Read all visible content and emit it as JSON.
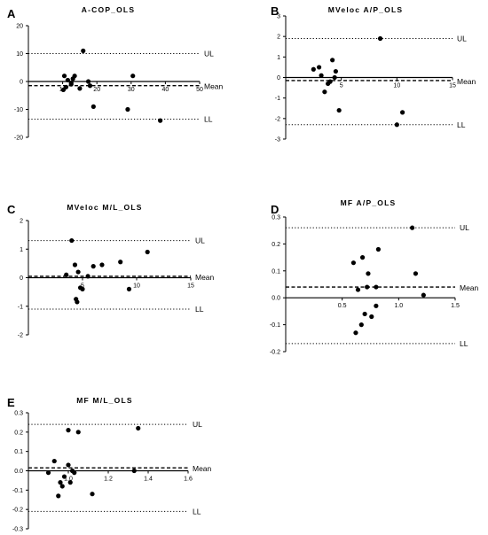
{
  "chart_data": [
    {
      "type": "scatter",
      "panel": "A",
      "title": "A-COP_OLS",
      "xlim": [
        0,
        50
      ],
      "ylim": [
        -20,
        20
      ],
      "x_ticks": [
        "10",
        "20",
        "30",
        "40",
        "50"
      ],
      "y_ticks": [
        "20",
        "10",
        "0",
        "-10",
        "-20"
      ],
      "ul": 10,
      "mean": -1.5,
      "ll": -13.5,
      "labels": {
        "ul": "UL",
        "mean": "Mean",
        "ll": "LL"
      },
      "points": [
        {
          "x": 10.5,
          "y": 2
        },
        {
          "x": 11.5,
          "y": 0.5
        },
        {
          "x": 11,
          "y": -2
        },
        {
          "x": 10.2,
          "y": -3
        },
        {
          "x": 12.5,
          "y": -1
        },
        {
          "x": 13,
          "y": 1
        },
        {
          "x": 13.5,
          "y": 2
        },
        {
          "x": 12.5,
          "y": -0.5
        },
        {
          "x": 15,
          "y": -2.5
        },
        {
          "x": 16,
          "y": 11
        },
        {
          "x": 17.5,
          "y": 0
        },
        {
          "x": 18,
          "y": -1.5
        },
        {
          "x": 19,
          "y": -9
        },
        {
          "x": 29,
          "y": -10
        },
        {
          "x": 30.5,
          "y": 2
        },
        {
          "x": 38.5,
          "y": -14
        }
      ]
    },
    {
      "type": "scatter",
      "panel": "B",
      "title": "MVeloc A/P_OLS",
      "xlim": [
        0,
        15
      ],
      "ylim": [
        -3,
        3
      ],
      "x_ticks": [
        "5",
        "10",
        "15"
      ],
      "y_ticks": [
        "3",
        "2",
        "1",
        "0",
        "-1",
        "-2",
        "-3"
      ],
      "ul": 1.9,
      "mean": -0.15,
      "ll": -2.3,
      "labels": {
        "ul": "UL",
        "mean": "Mean",
        "ll": "LL"
      },
      "points": [
        {
          "x": 2.5,
          "y": 0.4
        },
        {
          "x": 3,
          "y": 0.5
        },
        {
          "x": 3.2,
          "y": 0.1
        },
        {
          "x": 3.5,
          "y": -0.7
        },
        {
          "x": 3.8,
          "y": -0.3
        },
        {
          "x": 4,
          "y": -0.2
        },
        {
          "x": 4.2,
          "y": 0.85
        },
        {
          "x": 4.4,
          "y": 0
        },
        {
          "x": 4.5,
          "y": 0.3
        },
        {
          "x": 4.8,
          "y": -1.6
        },
        {
          "x": 8.5,
          "y": 1.9
        },
        {
          "x": 10,
          "y": -2.3
        },
        {
          "x": 10.5,
          "y": -1.7
        }
      ]
    },
    {
      "type": "scatter",
      "panel": "C",
      "title": "MVeloc M/L_OLS",
      "xlim": [
        0,
        15
      ],
      "ylim": [
        -2,
        2
      ],
      "x_ticks": [
        "5",
        "10",
        "15"
      ],
      "y_ticks": [
        "2",
        "1",
        "0",
        "-1",
        "-2"
      ],
      "ul": 1.3,
      "mean": 0.05,
      "ll": -1.1,
      "labels": {
        "ul": "UL",
        "mean": "Mean",
        "ll": "LL"
      },
      "points": [
        {
          "x": 3.5,
          "y": 0.1
        },
        {
          "x": 4,
          "y": 1.3
        },
        {
          "x": 4.3,
          "y": 0.45
        },
        {
          "x": 4.4,
          "y": -0.75
        },
        {
          "x": 4.5,
          "y": -0.85
        },
        {
          "x": 4.6,
          "y": 0.2
        },
        {
          "x": 4.8,
          "y": -0.35
        },
        {
          "x": 5,
          "y": -0.4
        },
        {
          "x": 5.5,
          "y": 0.05
        },
        {
          "x": 6,
          "y": 0.4
        },
        {
          "x": 6.8,
          "y": 0.45
        },
        {
          "x": 8.5,
          "y": 0.55
        },
        {
          "x": 9.3,
          "y": -0.4
        },
        {
          "x": 11,
          "y": 0.9
        }
      ]
    },
    {
      "type": "scatter",
      "panel": "D",
      "title": "MF A/P_OLS",
      "xlim": [
        0,
        1.5
      ],
      "ylim": [
        -0.2,
        0.3
      ],
      "x_ticks": [
        "0.5",
        "1.0",
        "1.5"
      ],
      "y_ticks": [
        "0.3",
        "0.2",
        "0.1",
        "0.0",
        "-0.1",
        "-0.2"
      ],
      "ul": 0.26,
      "mean": 0.04,
      "ll": -0.17,
      "labels": {
        "ul": "UL",
        "mean": "Mean",
        "ll": "LL"
      },
      "points": [
        {
          "x": 0.6,
          "y": 0.13
        },
        {
          "x": 0.62,
          "y": -0.13
        },
        {
          "x": 0.64,
          "y": 0.03
        },
        {
          "x": 0.68,
          "y": 0.15
        },
        {
          "x": 0.67,
          "y": -0.1
        },
        {
          "x": 0.72,
          "y": 0.04
        },
        {
          "x": 0.73,
          "y": 0.09
        },
        {
          "x": 0.7,
          "y": -0.06
        },
        {
          "x": 0.76,
          "y": -0.07
        },
        {
          "x": 0.8,
          "y": 0.04
        },
        {
          "x": 0.8,
          "y": -0.03
        },
        {
          "x": 0.82,
          "y": 0.18
        },
        {
          "x": 1.12,
          "y": 0.26
        },
        {
          "x": 1.15,
          "y": 0.09
        },
        {
          "x": 1.22,
          "y": 0.01
        }
      ]
    },
    {
      "type": "scatter",
      "panel": "E",
      "title": "MF M/L_OLS",
      "xlim": [
        0.8,
        1.6
      ],
      "ylim": [
        -0.3,
        0.3
      ],
      "x_ticks": [
        "1.0",
        "1.2",
        "1.4",
        "1.6"
      ],
      "y_ticks": [
        "0.3",
        "0.2",
        "0.1",
        "0.0",
        "-0.1",
        "-0.2",
        "-0.3"
      ],
      "x_axis_at": 0.8,
      "ul": 0.24,
      "mean": 0.015,
      "ll": -0.21,
      "labels": {
        "ul": "UL",
        "mean": "Mean",
        "ll": "LL"
      },
      "points": [
        {
          "x": 0.9,
          "y": -0.01
        },
        {
          "x": 0.93,
          "y": 0.05
        },
        {
          "x": 0.95,
          "y": -0.13
        },
        {
          "x": 0.96,
          "y": -0.06
        },
        {
          "x": 0.97,
          "y": -0.08
        },
        {
          "x": 0.98,
          "y": -0.03
        },
        {
          "x": 1,
          "y": 0.21
        },
        {
          "x": 1,
          "y": 0.03
        },
        {
          "x": 1.01,
          "y": -0.06
        },
        {
          "x": 1.02,
          "y": 0
        },
        {
          "x": 1.03,
          "y": -0.01
        },
        {
          "x": 1.05,
          "y": 0.2
        },
        {
          "x": 1.12,
          "y": -0.12
        },
        {
          "x": 1.33,
          "y": 0
        },
        {
          "x": 1.35,
          "y": 0.22
        }
      ]
    }
  ]
}
